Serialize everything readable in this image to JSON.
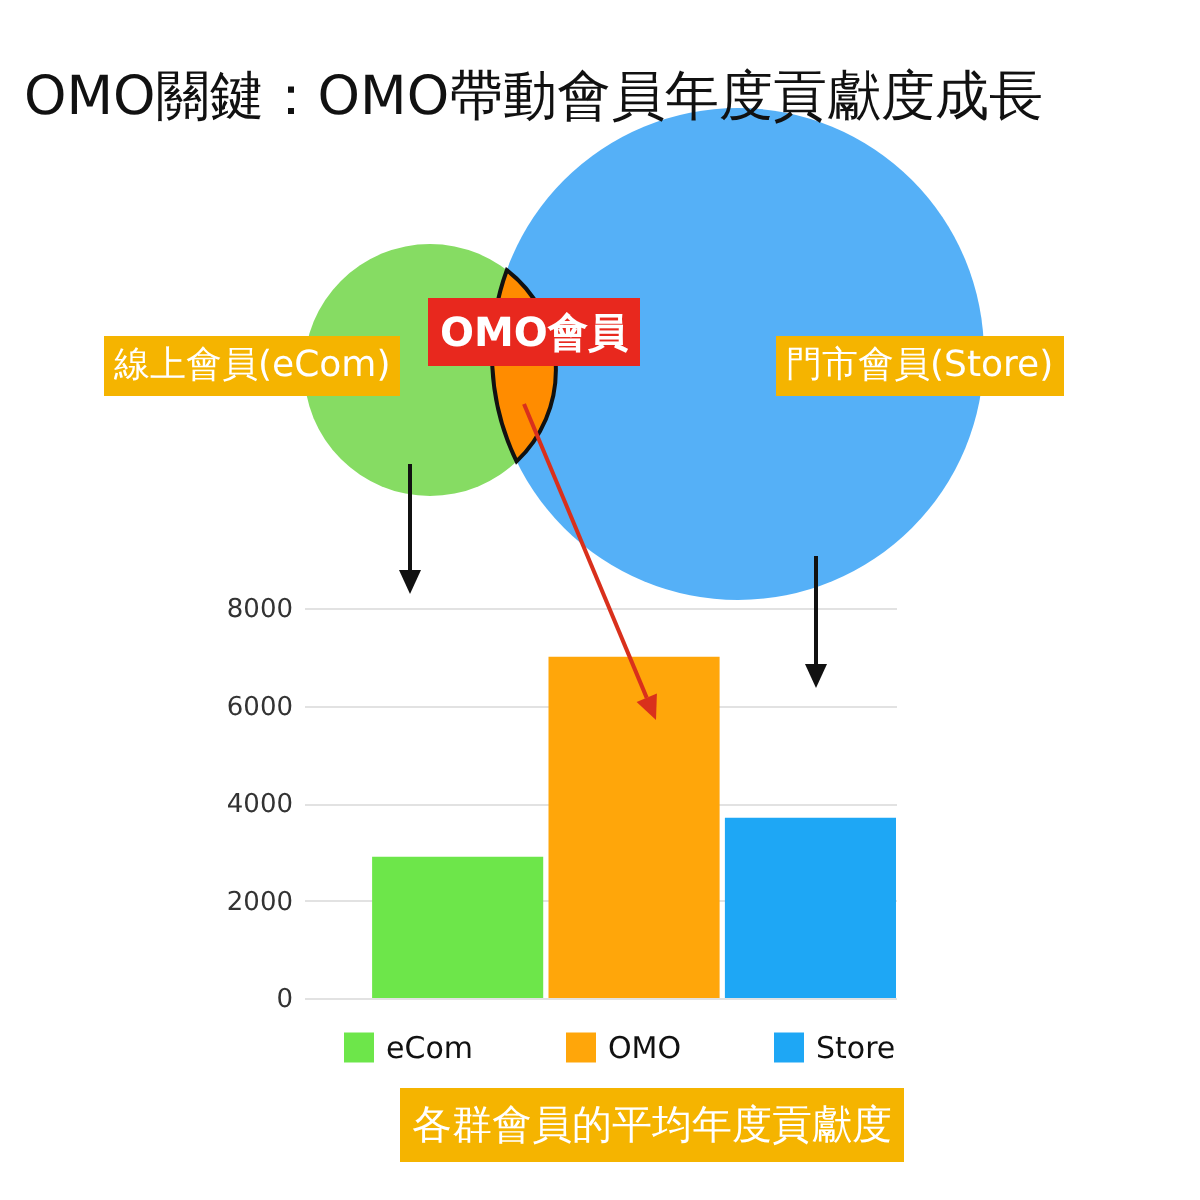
{
  "chart_data": {
    "type": "bar",
    "title": "OMO關鍵：OMO帶動會員年度貢獻度成長",
    "xlabel": "各群會員的平均年度貢獻度",
    "annotations": [
      "線上會員(eCom)",
      "OMO會員",
      "門市會員(Store)"
    ],
    "categories": [
      null
    ],
    "series": [
      {
        "name": "eCom",
        "color": "#6de64a",
        "values": [
          2900
        ]
      },
      {
        "name": "OMO",
        "color": "#ffa60a",
        "values": [
          7000
        ]
      },
      {
        "name": "Store",
        "color": "#1ea7f5",
        "values": [
          3700
        ]
      }
    ],
    "ylim": [
      0,
      8000
    ],
    "yticks": [
      0,
      2000,
      4000,
      6000,
      8000
    ],
    "grid": "y",
    "legend": "bottom",
    "tick_labels": "y"
  }
}
